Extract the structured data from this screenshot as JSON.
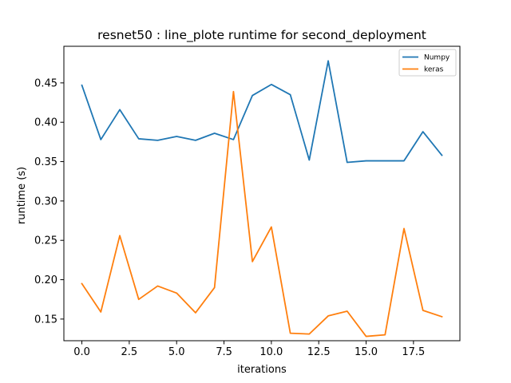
{
  "chart_data": {
    "type": "line",
    "title": "resnet50 : line_plote runtime  for second_deployment",
    "xlabel": "iterations",
    "ylabel": "runtime (s)",
    "xlim": [
      -0.95,
      19.95
    ],
    "ylim": [
      0.1225,
      0.4965
    ],
    "xticks": [
      0.0,
      2.5,
      5.0,
      7.5,
      10.0,
      12.5,
      15.0,
      17.5
    ],
    "xtick_labels": [
      "0.0",
      "2.5",
      "5.0",
      "7.5",
      "10.0",
      "12.5",
      "15.0",
      "17.5"
    ],
    "yticks": [
      0.15,
      0.2,
      0.25,
      0.3,
      0.35,
      0.4,
      0.45
    ],
    "ytick_labels": [
      "0.15",
      "0.20",
      "0.25",
      "0.30",
      "0.35",
      "0.40",
      "0.45"
    ],
    "grid": false,
    "legend_position": "top-right",
    "x": [
      0,
      1,
      2,
      3,
      4,
      5,
      6,
      7,
      8,
      9,
      10,
      11,
      12,
      13,
      14,
      15,
      16,
      17,
      18,
      19
    ],
    "series": [
      {
        "name": "Numpy",
        "color": "#1f77b4",
        "values": [
          0.447,
          0.378,
          0.416,
          0.379,
          0.377,
          0.382,
          0.377,
          0.386,
          0.378,
          0.434,
          0.448,
          0.435,
          0.352,
          0.478,
          0.349,
          0.351,
          0.351,
          0.351,
          0.388,
          0.358
        ]
      },
      {
        "name": "keras",
        "color": "#ff7f0e",
        "values": [
          0.195,
          0.159,
          0.256,
          0.175,
          0.192,
          0.183,
          0.158,
          0.19,
          0.439,
          0.223,
          0.267,
          0.132,
          0.131,
          0.154,
          0.16,
          0.128,
          0.13,
          0.265,
          0.161,
          0.153
        ]
      }
    ]
  }
}
